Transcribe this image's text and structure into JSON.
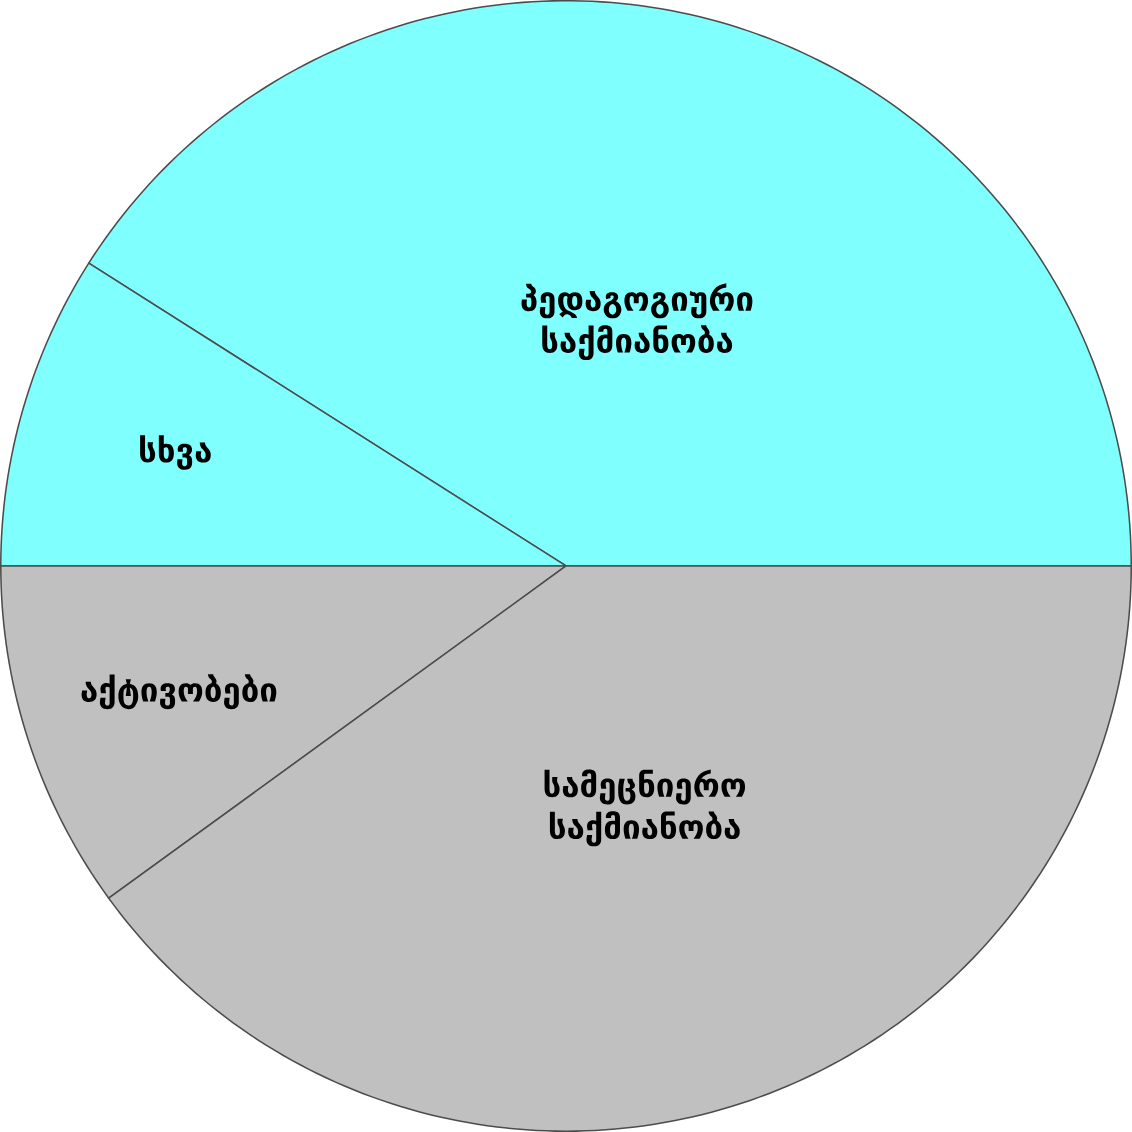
{
  "chart_data": {
    "type": "pie",
    "categories": [
      "პედაგოგიური საქმიანობა",
      "სხვა",
      "აქტივობები",
      "სამეცნიერო საქმიანობა"
    ],
    "values": [
      41,
      9,
      10,
      40
    ],
    "colors": [
      "#80ffff",
      "#80ffff",
      "#c0c0c0",
      "#c0c0c0"
    ]
  }
}
